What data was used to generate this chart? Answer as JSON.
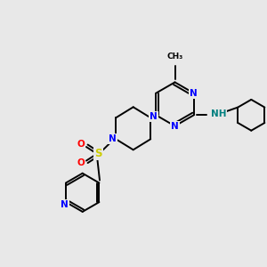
{
  "bg_color": "#e8e8e8",
  "bond_color": "#000000",
  "n_color": "#0000ff",
  "s_color": "#cccc00",
  "o_color": "#ff0000",
  "nh_color": "#008080",
  "lw": 1.4,
  "fs": 7.5,
  "xlim": [
    0,
    10
  ],
  "ylim": [
    0,
    10
  ]
}
